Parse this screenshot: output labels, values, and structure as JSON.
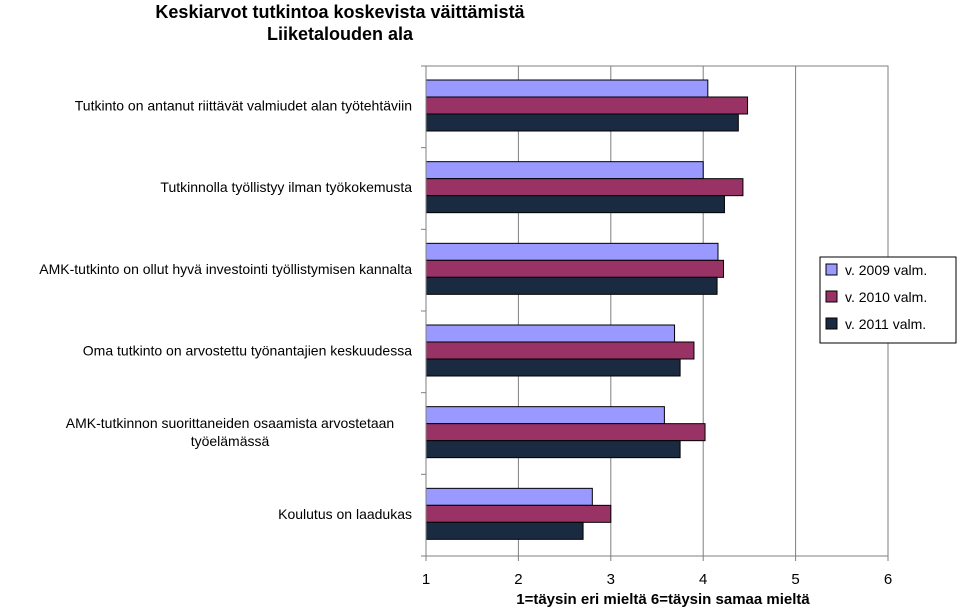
{
  "chart_data": {
    "type": "bar",
    "orientation": "horizontal",
    "title": [
      "Keskiarvot tutkintoa koskevista väittämistä",
      "Liiketalouden ala"
    ],
    "xlabel": "1=täysin eri mieltä 6=täysin samaa mieltä",
    "ylabel": "",
    "xlim": [
      1,
      6
    ],
    "x_ticks": [
      "1",
      "2",
      "3",
      "4",
      "5",
      "6"
    ],
    "grid": "vertical",
    "legend_position": "right",
    "categories": [
      [
        "Tutkinto on antanut riittävät valmiudet alan työtehtäviin"
      ],
      [
        "Tutkinnolla työllistyy ilman työkokemusta"
      ],
      [
        "AMK-tutkinto on ollut hyvä investointi työllistymisen kannalta"
      ],
      [
        "Oma tutkinto on arvostettu työnantajien keskuudessa"
      ],
      [
        "AMK-tutkinnon suorittaneiden osaamista arvostetaan",
        "työelämässä"
      ],
      [
        "Koulutus on laadukas"
      ]
    ],
    "series": [
      {
        "name": "v. 2009 valm.",
        "color": "#9999ff",
        "values": [
          4.05,
          4.0,
          4.16,
          3.69,
          3.58,
          2.8
        ]
      },
      {
        "name": "v. 2010 valm.",
        "color": "#993366",
        "values": [
          4.48,
          4.43,
          4.22,
          3.9,
          4.02,
          3.0
        ]
      },
      {
        "name": "v. 2011 valm.",
        "color": "#1a2a40",
        "values": [
          4.38,
          4.23,
          4.15,
          3.75,
          3.75,
          2.7
        ]
      }
    ]
  }
}
